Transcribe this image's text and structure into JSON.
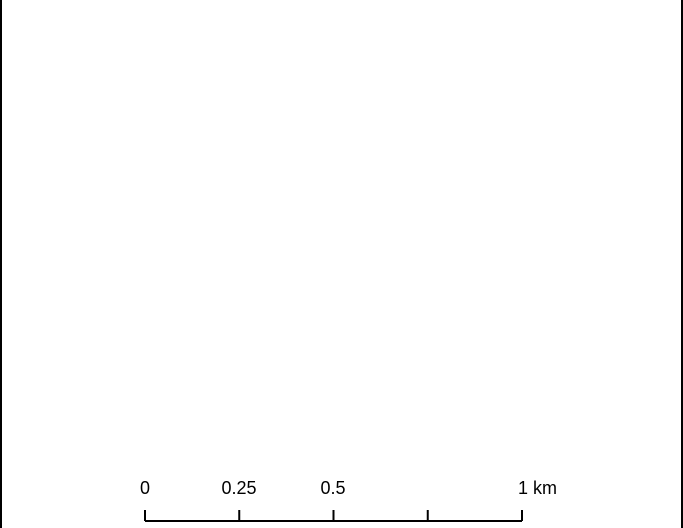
{
  "map": {
    "background_color": "#ffffff",
    "frame_color": "#000000"
  },
  "scale_bar": {
    "labels": [
      "0",
      "0.25",
      "0.5",
      "1 km"
    ],
    "tick_values_km": [
      0,
      0.25,
      0.5,
      0.75,
      1
    ],
    "max_km": 1,
    "unit": "km"
  }
}
